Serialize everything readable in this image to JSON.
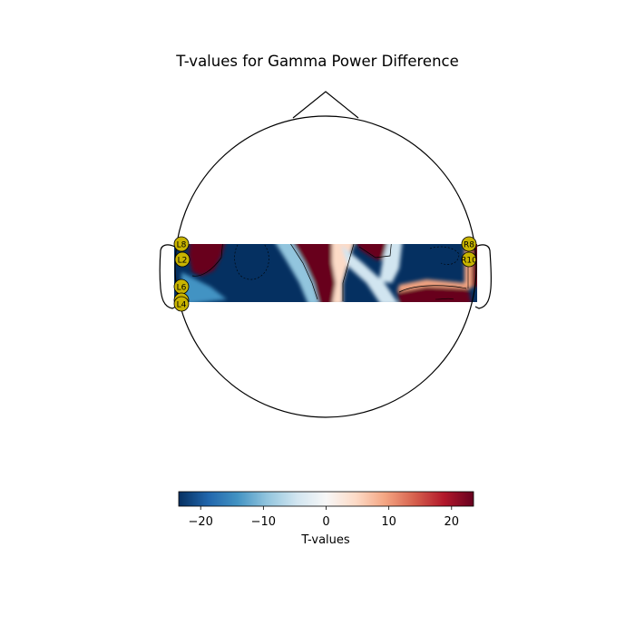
{
  "chart_data": {
    "type": "heatmap",
    "subtype": "topomap",
    "title": "T-values for Gamma Power Difference",
    "colorbar": {
      "label": "T-values",
      "range": [
        -23.5,
        23.5
      ],
      "ticks": [
        -20,
        -10,
        0,
        10,
        20
      ],
      "tick_labels": [
        "−20",
        "−10",
        "0",
        "10",
        "20"
      ],
      "colormap": "RdBu_r",
      "placement": "bottom"
    },
    "sensors": [
      {
        "label": "L8",
        "side": "left"
      },
      {
        "label": "L2",
        "side": "left"
      },
      {
        "label": "L6",
        "side": "left"
      },
      {
        "label": "L5",
        "side": "left"
      },
      {
        "label": "L4",
        "side": "left"
      },
      {
        "label": "R8",
        "side": "right"
      },
      {
        "label": "R10",
        "side": "right"
      }
    ],
    "sensor_marker_color": "#c8b400",
    "colors": {
      "positive_max": "#67001f",
      "negative_max": "#053061",
      "zero": "#f7f7f7"
    }
  }
}
